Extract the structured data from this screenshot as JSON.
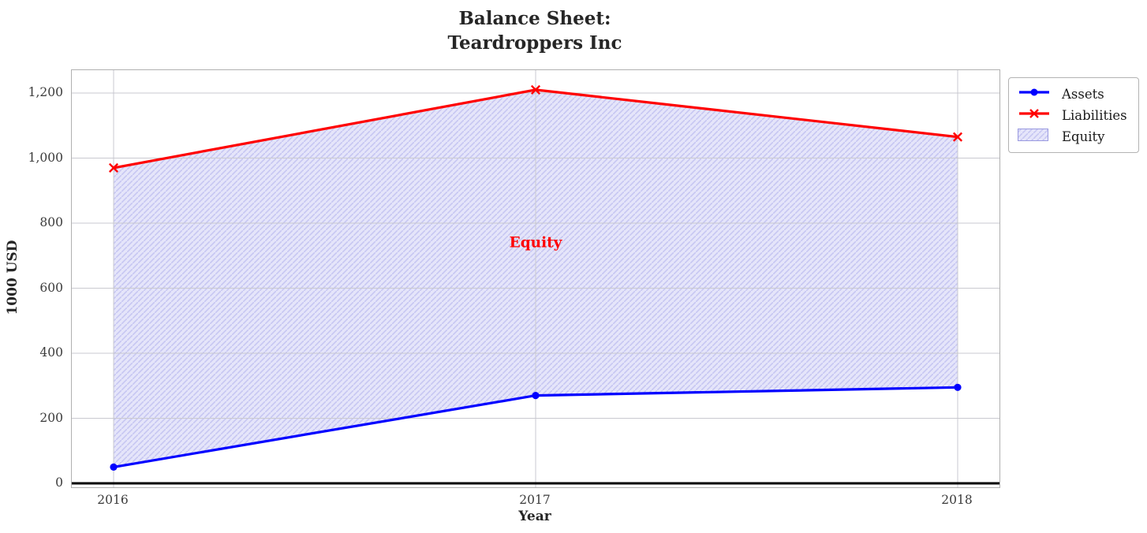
{
  "title": {
    "line1": "Balance Sheet:",
    "line2": "Teardroppers Inc"
  },
  "x_axis": {
    "label": "Year",
    "ticks": [
      "2016",
      "2017",
      "2018"
    ]
  },
  "y_axis": {
    "label": "1000 USD",
    "ticks": [
      "0",
      "200",
      "400",
      "600",
      "800",
      "1,000",
      "1,200"
    ],
    "tick_values": [
      0,
      200,
      400,
      600,
      800,
      1000,
      1200
    ]
  },
  "annotation": {
    "text": "Equity",
    "color": "#ff0000"
  },
  "legend": {
    "items": [
      {
        "label": "Assets",
        "swatch": "line-circle-marker",
        "color": "#0000ff"
      },
      {
        "label": "Liabilities",
        "swatch": "line-x-marker",
        "color": "#ff0000"
      },
      {
        "label": "Equity",
        "swatch": "hatched-patch",
        "fill": "#e5e5fa",
        "hatch_color": "#c7c7f2",
        "border_color": "#9a9ae0"
      }
    ]
  },
  "chart_data": {
    "type": "line",
    "title": "Balance Sheet:\nTeardroppers Inc",
    "xlabel": "Year",
    "ylabel": "1000 USD",
    "x": [
      2016,
      2017,
      2018
    ],
    "series": [
      {
        "name": "Assets",
        "marker": "circle",
        "color": "#0000ff",
        "values": [
          50,
          270,
          295
        ]
      },
      {
        "name": "Liabilities",
        "marker": "x",
        "color": "#ff0000",
        "values": [
          970,
          1210,
          1065
        ]
      }
    ],
    "fill_between": {
      "label": "Equity",
      "between": [
        "Assets",
        "Liabilities"
      ],
      "fill_color": "#e5e5fa",
      "hatch": "/",
      "hatch_color": "#c7c7f2",
      "annotation": {
        "text": "Equity",
        "x": 2017,
        "y": 740,
        "color": "#ff0000"
      }
    },
    "ylim": [
      0,
      1280
    ],
    "yticks": [
      0,
      200,
      400,
      600,
      800,
      1000,
      1200
    ],
    "grid": true,
    "zero_line": {
      "color": "#000000",
      "width": 3
    },
    "legend_position": "outside upper right"
  }
}
